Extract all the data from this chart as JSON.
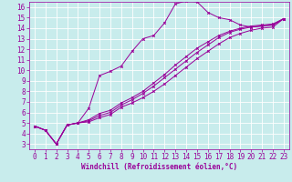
{
  "bg_color": "#c8ecec",
  "grid_color": "#ffffff",
  "line_color": "#990099",
  "xlabel": "Windchill (Refroidissement éolien,°C)",
  "xlim": [
    -0.5,
    23.5
  ],
  "ylim": [
    2.5,
    16.5
  ],
  "xticks": [
    0,
    1,
    2,
    3,
    4,
    5,
    6,
    7,
    8,
    9,
    10,
    11,
    12,
    13,
    14,
    15,
    16,
    17,
    18,
    19,
    20,
    21,
    22,
    23
  ],
  "yticks": [
    3,
    4,
    5,
    6,
    7,
    8,
    9,
    10,
    11,
    12,
    13,
    14,
    15,
    16
  ],
  "line1_x": [
    0,
    1,
    2,
    3,
    4,
    5,
    6,
    7,
    8,
    9,
    10,
    11,
    12,
    13,
    14,
    15,
    16,
    17,
    18,
    19,
    20,
    21,
    22,
    23
  ],
  "line1_y": [
    4.7,
    4.3,
    3.0,
    4.8,
    5.0,
    6.4,
    9.5,
    9.9,
    10.4,
    11.8,
    13.0,
    13.3,
    14.5,
    16.3,
    16.6,
    16.5,
    15.5,
    15.0,
    14.8,
    14.3,
    14.1,
    14.2,
    14.3,
    14.9
  ],
  "line2_x": [
    0,
    1,
    2,
    3,
    4,
    5,
    6,
    7,
    8,
    9,
    10,
    11,
    12,
    13,
    14,
    15,
    16,
    17,
    18,
    19,
    20,
    21,
    22,
    23
  ],
  "line2_y": [
    4.7,
    4.3,
    3.0,
    4.8,
    5.0,
    5.1,
    5.5,
    5.8,
    6.5,
    6.9,
    7.4,
    8.0,
    8.7,
    9.5,
    10.3,
    11.1,
    11.8,
    12.5,
    13.1,
    13.5,
    13.8,
    14.0,
    14.1,
    14.9
  ],
  "line3_x": [
    0,
    1,
    2,
    3,
    4,
    5,
    6,
    7,
    8,
    9,
    10,
    11,
    12,
    13,
    14,
    15,
    16,
    17,
    18,
    19,
    20,
    21,
    22,
    23
  ],
  "line3_y": [
    4.7,
    4.3,
    3.0,
    4.8,
    5.0,
    5.2,
    5.7,
    6.0,
    6.7,
    7.2,
    7.8,
    8.5,
    9.3,
    10.1,
    10.9,
    11.7,
    12.4,
    13.1,
    13.6,
    13.9,
    14.1,
    14.2,
    14.3,
    14.9
  ],
  "line4_x": [
    0,
    1,
    2,
    3,
    4,
    5,
    6,
    7,
    8,
    9,
    10,
    11,
    12,
    13,
    14,
    15,
    16,
    17,
    18,
    19,
    20,
    21,
    22,
    23
  ],
  "line4_y": [
    4.7,
    4.3,
    3.0,
    4.8,
    5.0,
    5.3,
    5.9,
    6.2,
    6.9,
    7.4,
    8.0,
    8.8,
    9.6,
    10.5,
    11.3,
    12.1,
    12.7,
    13.3,
    13.7,
    14.0,
    14.2,
    14.3,
    14.4,
    14.9
  ],
  "tick_fontsize": 5.5,
  "xlabel_fontsize": 5.5,
  "lw": 0.7,
  "ms": 1.8
}
